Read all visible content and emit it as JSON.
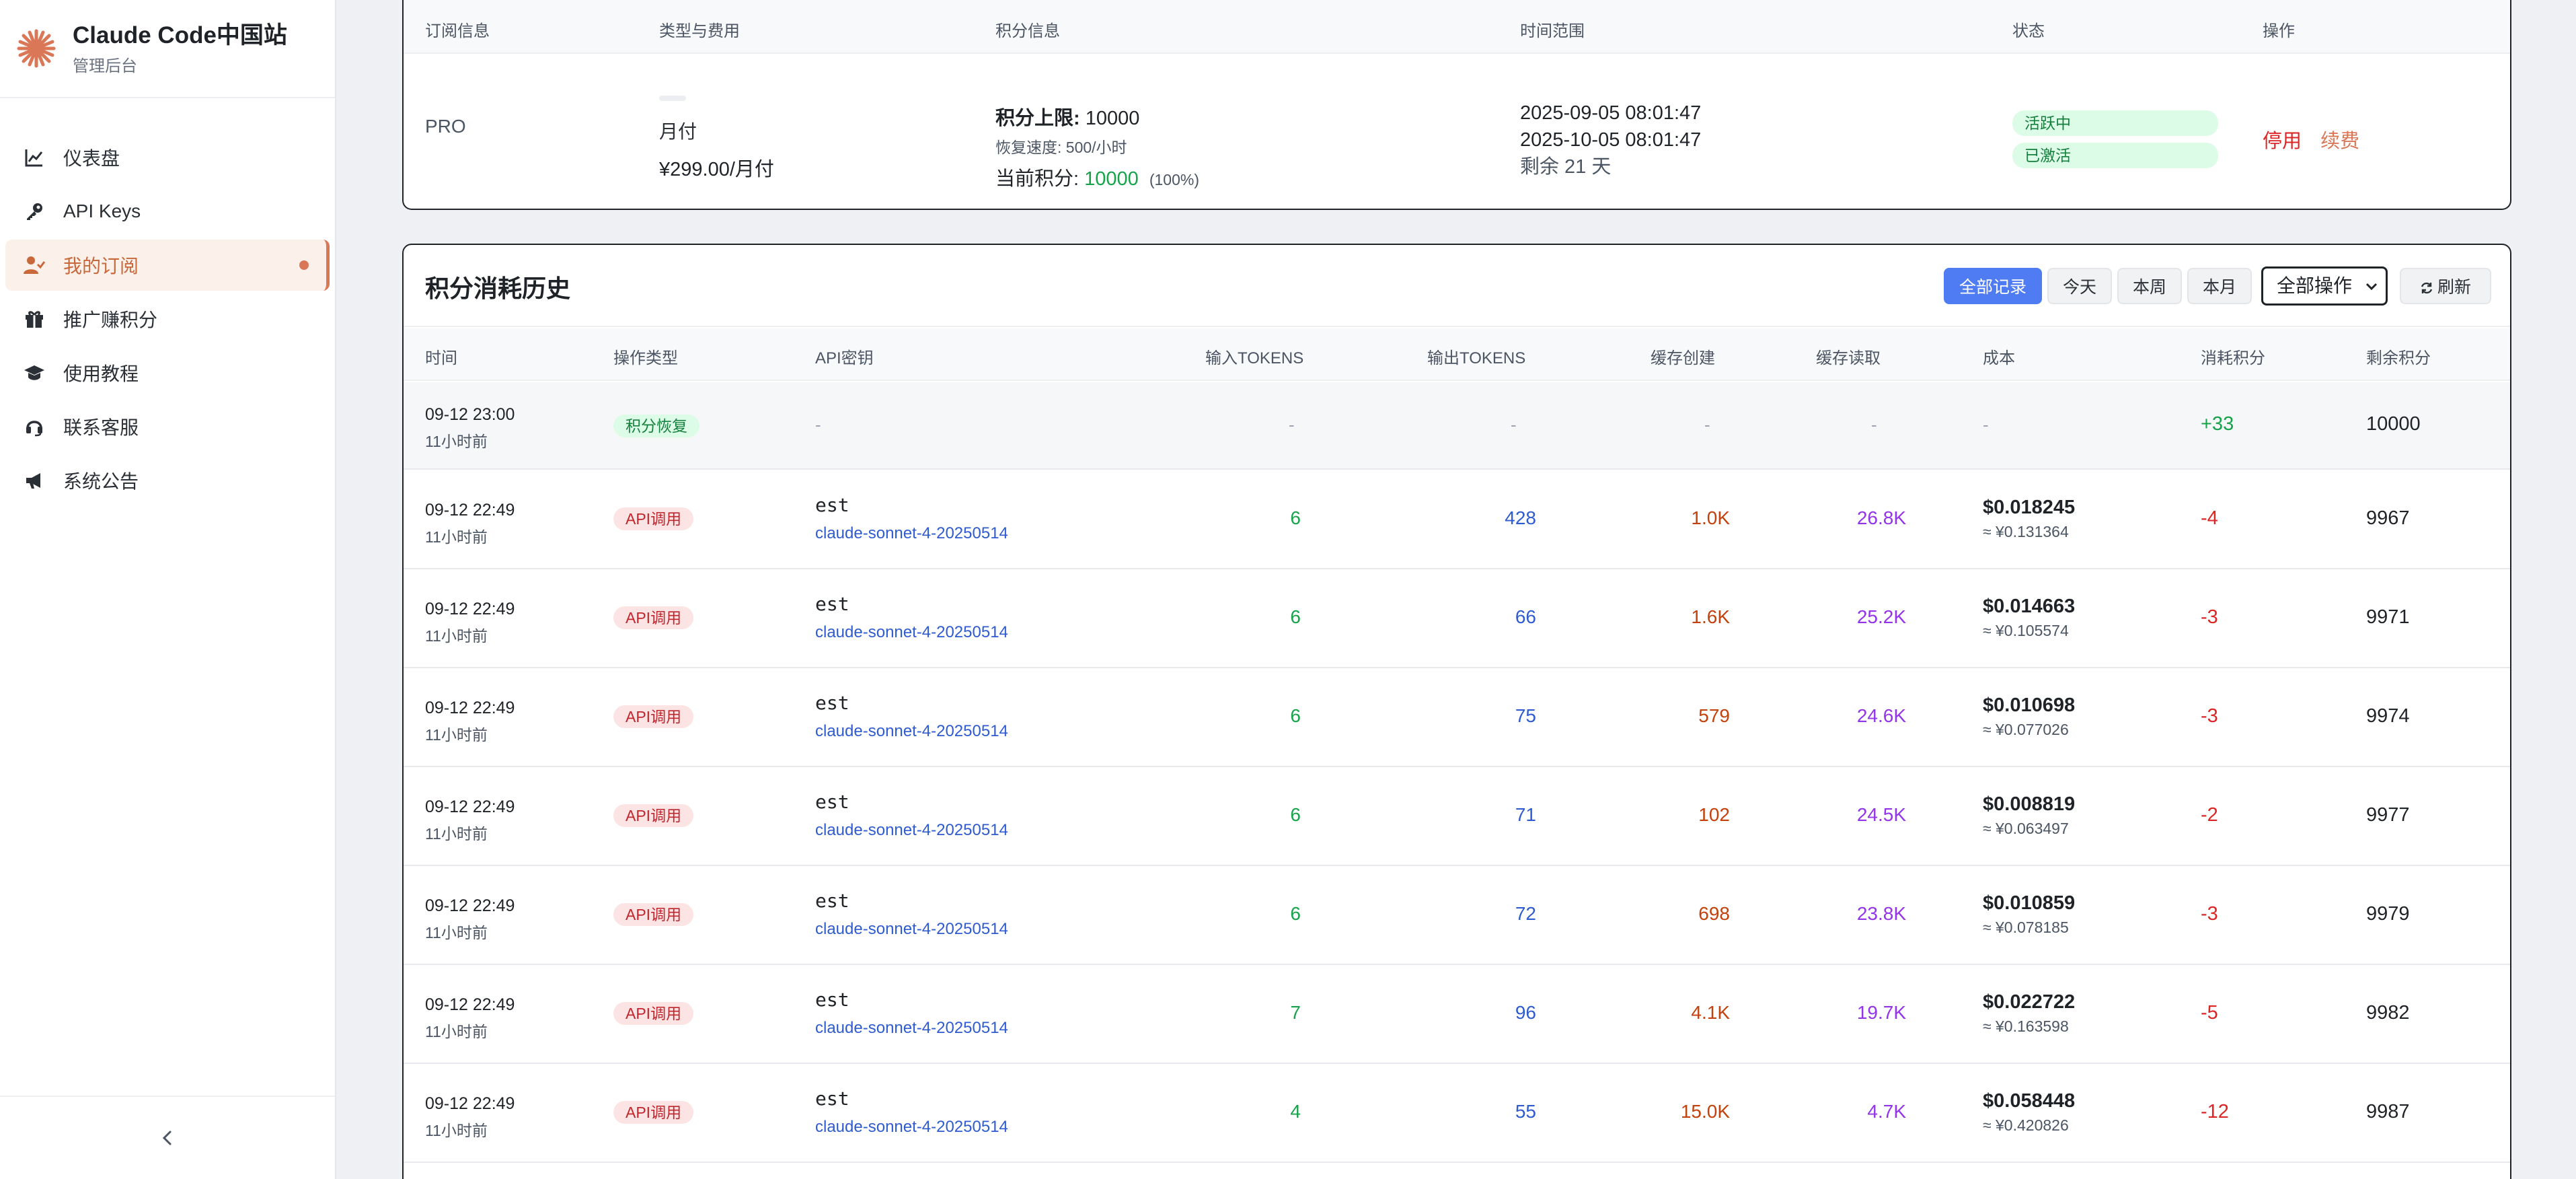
{
  "brand": {
    "title": "Claude Code中国站",
    "subtitle": "管理后台",
    "accent": "#d97757"
  },
  "sidebar": {
    "items": [
      {
        "label": "仪表盘",
        "icon": "chart-line-icon"
      },
      {
        "label": "API Keys",
        "icon": "key-icon"
      },
      {
        "label": "我的订阅",
        "icon": "user-check-icon",
        "active": true
      },
      {
        "label": "推广赚积分",
        "icon": "gift-icon"
      },
      {
        "label": "使用教程",
        "icon": "graduation-cap-icon"
      },
      {
        "label": "联系客服",
        "icon": "headset-icon"
      },
      {
        "label": "系统公告",
        "icon": "megaphone-icon"
      }
    ],
    "collapse_icon": "chevron-left-icon"
  },
  "subscription": {
    "headers": [
      "订阅信息",
      "类型与费用",
      "积分信息",
      "时间范围",
      "状态",
      "操作"
    ],
    "plan": "PRO",
    "billing": "月付",
    "price": "¥299.00/月付",
    "credit_limit_label": "积分上限:",
    "credit_limit": "10000",
    "recovery": "恢复速度: 500/小时",
    "current_label": "当前积分:",
    "current": "10000",
    "current_pct": "(100%)",
    "start": "2025-09-05 08:01:47",
    "end": "2025-10-05 08:01:47",
    "remaining": "剩余 21 天",
    "status": [
      "活跃中",
      "已激活"
    ],
    "actions": {
      "stop": "停用",
      "renew": "续费"
    }
  },
  "history": {
    "title": "积分消耗历史",
    "filters": [
      "全部记录",
      "今天",
      "本周",
      "本月"
    ],
    "select_value": "全部操作",
    "refresh": "刷新",
    "columns": [
      "时间",
      "操作类型",
      "API密钥",
      "输入TOKENS",
      "输出TOKENS",
      "缓存创建",
      "缓存读取",
      "成本",
      "消耗积分",
      "剩余积分"
    ],
    "recover_row": {
      "time": "09-12 23:00",
      "ago": "11小时前",
      "type": "积分恢复",
      "dash": "-",
      "credits": "+33",
      "remaining": "10000"
    },
    "rows": [
      {
        "time": "09-12 22:49",
        "ago": "11小时前",
        "type": "API调用",
        "key": "est",
        "model": "claude-sonnet-4-20250514",
        "in": "6",
        "out": "428",
        "cache_create": "1.0K",
        "cache_read": "26.8K",
        "cost_usd": "$0.018245",
        "cost_cny": "≈ ¥0.131364",
        "credits": "-4",
        "remaining": "9967"
      },
      {
        "time": "09-12 22:49",
        "ago": "11小时前",
        "type": "API调用",
        "key": "est",
        "model": "claude-sonnet-4-20250514",
        "in": "6",
        "out": "66",
        "cache_create": "1.6K",
        "cache_read": "25.2K",
        "cost_usd": "$0.014663",
        "cost_cny": "≈ ¥0.105574",
        "credits": "-3",
        "remaining": "9971"
      },
      {
        "time": "09-12 22:49",
        "ago": "11小时前",
        "type": "API调用",
        "key": "est",
        "model": "claude-sonnet-4-20250514",
        "in": "6",
        "out": "75",
        "cache_create": "579",
        "cache_read": "24.6K",
        "cost_usd": "$0.010698",
        "cost_cny": "≈ ¥0.077026",
        "credits": "-3",
        "remaining": "9974"
      },
      {
        "time": "09-12 22:49",
        "ago": "11小时前",
        "type": "API调用",
        "key": "est",
        "model": "claude-sonnet-4-20250514",
        "in": "6",
        "out": "71",
        "cache_create": "102",
        "cache_read": "24.5K",
        "cost_usd": "$0.008819",
        "cost_cny": "≈ ¥0.063497",
        "credits": "-2",
        "remaining": "9977"
      },
      {
        "time": "09-12 22:49",
        "ago": "11小时前",
        "type": "API调用",
        "key": "est",
        "model": "claude-sonnet-4-20250514",
        "in": "6",
        "out": "72",
        "cache_create": "698",
        "cache_read": "23.8K",
        "cost_usd": "$0.010859",
        "cost_cny": "≈ ¥0.078185",
        "credits": "-3",
        "remaining": "9979"
      },
      {
        "time": "09-12 22:49",
        "ago": "11小时前",
        "type": "API调用",
        "key": "est",
        "model": "claude-sonnet-4-20250514",
        "in": "7",
        "out": "96",
        "cache_create": "4.1K",
        "cache_read": "19.7K",
        "cost_usd": "$0.022722",
        "cost_cny": "≈ ¥0.163598",
        "credits": "-5",
        "remaining": "9982"
      },
      {
        "time": "09-12 22:49",
        "ago": "11小时前",
        "type": "API调用",
        "key": "est",
        "model": "claude-sonnet-4-20250514",
        "in": "4",
        "out": "55",
        "cache_create": "15.0K",
        "cache_read": "4.7K",
        "cost_usd": "$0.058448",
        "cost_cny": "≈ ¥0.420826",
        "credits": "-12",
        "remaining": "9987"
      }
    ]
  }
}
